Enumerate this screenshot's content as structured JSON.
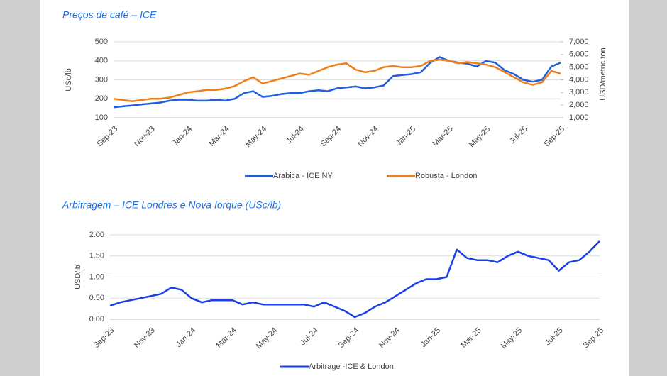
{
  "chart_data": [
    {
      "type": "line",
      "title": "Preços de café – ICE",
      "ylabel": "USc/lb",
      "y2label": "USD/metric ton",
      "categories": [
        "Sep-23",
        null,
        null,
        null,
        "Nov-23",
        null,
        null,
        null,
        "Jan-24",
        null,
        null,
        null,
        "Mar-24",
        null,
        null,
        null,
        "May-24",
        null,
        null,
        null,
        "Jul-24",
        null,
        null,
        null,
        "Sep-24",
        null,
        null,
        null,
        "Nov-24",
        null,
        null,
        null,
        "Jan-25",
        null,
        null,
        null,
        "Mar-25",
        null,
        null,
        null,
        "May-25",
        null,
        null,
        null,
        "Jul-25",
        null,
        null,
        null,
        "Sep-25"
      ],
      "ylim": [
        100,
        500
      ],
      "yticks": [
        100,
        200,
        300,
        400,
        500
      ],
      "y2lim": [
        1000,
        7000
      ],
      "y2ticks": [
        {
          "value": 1000,
          "label": "1,000"
        },
        {
          "value": 2000,
          "label": "2,000"
        },
        {
          "value": 3000,
          "label": "3,000"
        },
        {
          "value": 4000,
          "label": "4,000"
        },
        {
          "value": 5000,
          "label": "5,000"
        },
        {
          "value": 6000,
          "label": "6,000"
        },
        {
          "value": 7000,
          "label": "7,000"
        }
      ],
      "grid": true,
      "series": [
        {
          "name": "Arabica - ICE NY",
          "color": "#1f5fe0",
          "values": [
            155,
            160,
            165,
            170,
            175,
            180,
            190,
            195,
            195,
            190,
            190,
            195,
            190,
            200,
            230,
            240,
            210,
            215,
            225,
            230,
            230,
            240,
            245,
            240,
            255,
            260,
            265,
            255,
            260,
            270,
            320,
            325,
            330,
            340,
            390,
            420,
            400,
            390,
            385,
            370,
            400,
            390,
            350,
            330,
            300,
            290,
            300,
            370,
            390
          ]
        },
        {
          "name": "Robusta - London",
          "color": "#f07f1a",
          "axis": "y2",
          "values": [
            2500,
            2400,
            2300,
            2400,
            2500,
            2500,
            2600,
            2800,
            3000,
            3100,
            3200,
            3200,
            3300,
            3500,
            3900,
            4200,
            3700,
            3900,
            4100,
            4300,
            4500,
            4400,
            4700,
            5000,
            5200,
            5300,
            4800,
            4600,
            4700,
            5000,
            5100,
            5000,
            5000,
            5100,
            5500,
            5600,
            5500,
            5300,
            5400,
            5300,
            5200,
            5000,
            4600,
            4200,
            3800,
            3600,
            3800,
            4700,
            4500
          ]
        }
      ]
    },
    {
      "type": "line",
      "title": "Arbitragem – ICE Londres e Nova Iorque (USc/lb)",
      "ylabel": "USD/lb",
      "categories": [
        "Sep-23",
        null,
        null,
        null,
        "Nov-23",
        null,
        null,
        null,
        "Jan-24",
        null,
        null,
        null,
        "Mar-24",
        null,
        null,
        null,
        "May-24",
        null,
        null,
        null,
        "Jul-24",
        null,
        null,
        null,
        "Sep-24",
        null,
        null,
        null,
        "Nov-24",
        null,
        null,
        null,
        "Jan-25",
        null,
        null,
        null,
        "Mar-25",
        null,
        null,
        null,
        "May-25",
        null,
        null,
        null,
        "Jul-25",
        null,
        null,
        null,
        "Sep-25"
      ],
      "ylim": [
        0,
        2
      ],
      "yticks": [
        {
          "value": 0,
          "label": "0.00"
        },
        {
          "value": 0.5,
          "label": "0.50"
        },
        {
          "value": 1,
          "label": "1.00"
        },
        {
          "value": 1.5,
          "label": "1.50"
        },
        {
          "value": 2,
          "label": "2.00"
        }
      ],
      "grid": true,
      "series": [
        {
          "name": "Arbitrage -ICE & London",
          "color": "#1a3fe8",
          "values": [
            0.32,
            0.4,
            0.45,
            0.5,
            0.55,
            0.6,
            0.75,
            0.7,
            0.5,
            0.4,
            0.45,
            0.45,
            0.45,
            0.35,
            0.4,
            0.35,
            0.35,
            0.35,
            0.35,
            0.35,
            0.3,
            0.4,
            0.3,
            0.2,
            0.05,
            0.15,
            0.3,
            0.4,
            0.55,
            0.7,
            0.85,
            0.95,
            0.95,
            1.0,
            1.65,
            1.45,
            1.4,
            1.4,
            1.35,
            1.5,
            1.6,
            1.5,
            1.45,
            1.4,
            1.15,
            1.35,
            1.4,
            1.6,
            1.85
          ]
        }
      ]
    }
  ]
}
